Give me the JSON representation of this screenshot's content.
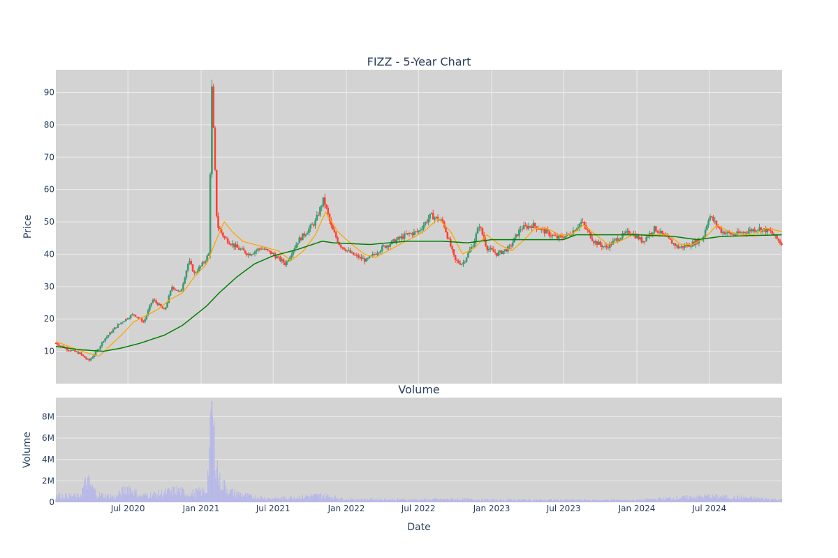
{
  "chart_data": [
    {
      "type": "candlestick",
      "title": "FIZZ - 5-Year Chart",
      "ylabel": "Price",
      "xlabel": "",
      "ylim": [
        0,
        97
      ],
      "xlim": [
        "2020-01-02",
        "2024-12-31"
      ],
      "yticks": [
        10,
        20,
        30,
        40,
        50,
        60,
        70,
        80,
        90
      ],
      "xticks": [
        "2020-07-01",
        "2021-01-01",
        "2021-07-01",
        "2022-01-01",
        "2022-07-01",
        "2023-01-01",
        "2023-07-01",
        "2024-01-01",
        "2024-07-01"
      ],
      "grid": true,
      "colors": {
        "plot_bg": "#d3d3d3",
        "grid": "#ececec",
        "up": "#3d9970",
        "down": "#ff4136",
        "ma_short": "#ffa500",
        "ma_long": "#008000"
      },
      "price_path": [
        [
          "2020-01-02",
          12.5
        ],
        [
          "2020-02-01",
          10.6
        ],
        [
          "2020-03-01",
          9.4
        ],
        [
          "2020-03-25",
          7.0
        ],
        [
          "2020-04-15",
          10.2
        ],
        [
          "2020-05-01",
          13.5
        ],
        [
          "2020-06-01",
          17.5
        ],
        [
          "2020-06-20",
          19.5
        ],
        [
          "2020-07-15",
          21.5
        ],
        [
          "2020-08-10",
          19.0
        ],
        [
          "2020-09-01",
          26.0
        ],
        [
          "2020-09-20",
          24.0
        ],
        [
          "2020-10-01",
          22.5
        ],
        [
          "2020-10-20",
          30.0
        ],
        [
          "2020-11-10",
          28.0
        ],
        [
          "2020-12-01",
          38.0
        ],
        [
          "2020-12-15",
          34.0
        ],
        [
          "2021-01-05",
          37.0
        ],
        [
          "2021-01-20",
          40.0
        ],
        [
          "2021-01-28",
          91.0
        ],
        [
          "2021-02-10",
          49.0
        ],
        [
          "2021-03-01",
          45.0
        ],
        [
          "2021-04-01",
          42.0
        ],
        [
          "2021-05-01",
          40.0
        ],
        [
          "2021-06-01",
          42.0
        ],
        [
          "2021-07-01",
          40.0
        ],
        [
          "2021-08-01",
          37.0
        ],
        [
          "2021-09-01",
          44.0
        ],
        [
          "2021-10-15",
          50.0
        ],
        [
          "2021-11-05",
          57.0
        ],
        [
          "2021-11-25",
          48.0
        ],
        [
          "2021-12-15",
          43.0
        ],
        [
          "2022-01-15",
          40.0
        ],
        [
          "2022-02-20",
          38.0
        ],
        [
          "2022-04-01",
          42.0
        ],
        [
          "2022-05-01",
          44.0
        ],
        [
          "2022-06-01",
          46.0
        ],
        [
          "2022-07-01",
          47.0
        ],
        [
          "2022-08-01",
          52.0
        ],
        [
          "2022-09-01",
          50.0
        ],
        [
          "2022-10-01",
          38.0
        ],
        [
          "2022-10-20",
          37.0
        ],
        [
          "2022-11-15",
          43.0
        ],
        [
          "2022-12-01",
          49.0
        ],
        [
          "2022-12-20",
          42.0
        ],
        [
          "2023-01-15",
          40.0
        ],
        [
          "2023-02-15",
          42.0
        ],
        [
          "2023-03-15",
          48.0
        ],
        [
          "2023-04-15",
          49.0
        ],
        [
          "2023-05-15",
          47.0
        ],
        [
          "2023-06-15",
          45.0
        ],
        [
          "2023-07-15",
          46.0
        ],
        [
          "2023-08-15",
          50.0
        ],
        [
          "2023-09-15",
          44.0
        ],
        [
          "2023-10-15",
          42.0
        ],
        [
          "2023-11-15",
          45.0
        ],
        [
          "2023-12-15",
          47.0
        ],
        [
          "2024-01-15",
          44.0
        ],
        [
          "2024-02-15",
          48.0
        ],
        [
          "2024-03-15",
          45.0
        ],
        [
          "2024-04-15",
          42.0
        ],
        [
          "2024-05-15",
          43.0
        ],
        [
          "2024-06-15",
          45.0
        ],
        [
          "2024-07-01",
          52.0
        ],
        [
          "2024-08-01",
          47.0
        ],
        [
          "2024-09-01",
          46.0
        ],
        [
          "2024-10-01",
          47.0
        ],
        [
          "2024-11-01",
          48.0
        ],
        [
          "2024-12-01",
          47.0
        ],
        [
          "2024-12-31",
          43.0
        ]
      ],
      "series": [
        {
          "values": [
            [
              "2020-01-02",
              13.0
            ],
            [
              "2020-02-15",
              11.0
            ],
            [
              "2020-03-20",
              9.5
            ],
            [
              "2020-04-20",
              8.5
            ],
            [
              "2020-05-15",
              11.5
            ],
            [
              "2020-06-15",
              15.0
            ],
            [
              "2020-07-15",
              19.0
            ],
            [
              "2020-08-15",
              21.0
            ],
            [
              "2020-09-15",
              23.0
            ],
            [
              "2020-10-15",
              26.0
            ],
            [
              "2020-11-15",
              28.0
            ],
            [
              "2020-12-15",
              33.0
            ],
            [
              "2021-01-15",
              37.0
            ],
            [
              "2021-02-10",
              45.0
            ],
            [
              "2021-02-28",
              50.0
            ],
            [
              "2021-03-20",
              47.0
            ],
            [
              "2021-04-15",
              44.0
            ],
            [
              "2021-05-15",
              43.0
            ],
            [
              "2021-06-15",
              42.0
            ],
            [
              "2021-07-15",
              41.0
            ],
            [
              "2021-08-15",
              38.0
            ],
            [
              "2021-09-15",
              41.0
            ],
            [
              "2021-10-15",
              46.0
            ],
            [
              "2021-11-10",
              53.0
            ],
            [
              "2021-12-10",
              47.0
            ],
            [
              "2022-01-15",
              43.0
            ],
            [
              "2022-02-15",
              40.0
            ],
            [
              "2022-03-15",
              39.0
            ],
            [
              "2022-04-15",
              41.0
            ],
            [
              "2022-05-15",
              43.0
            ],
            [
              "2022-06-15",
              45.0
            ],
            [
              "2022-07-15",
              47.0
            ],
            [
              "2022-08-20",
              51.0
            ],
            [
              "2022-09-20",
              47.0
            ],
            [
              "2022-10-20",
              40.0
            ],
            [
              "2022-11-20",
              42.0
            ],
            [
              "2022-12-20",
              46.0
            ],
            [
              "2023-01-20",
              43.0
            ],
            [
              "2023-02-20",
              41.0
            ],
            [
              "2023-03-20",
              44.0
            ],
            [
              "2023-04-20",
              48.0
            ],
            [
              "2023-05-20",
              48.0
            ],
            [
              "2023-06-20",
              46.0
            ],
            [
              "2023-07-20",
              46.0
            ],
            [
              "2023-08-20",
              49.0
            ],
            [
              "2023-09-20",
              46.0
            ],
            [
              "2023-10-20",
              43.0
            ],
            [
              "2023-11-20",
              44.0
            ],
            [
              "2023-12-20",
              46.0
            ],
            [
              "2024-01-20",
              46.0
            ],
            [
              "2024-02-20",
              46.0
            ],
            [
              "2024-03-20",
              46.0
            ],
            [
              "2024-04-20",
              43.0
            ],
            [
              "2024-05-20",
              43.0
            ],
            [
              "2024-06-20",
              45.0
            ],
            [
              "2024-07-20",
              49.0
            ],
            [
              "2024-08-20",
              47.0
            ],
            [
              "2024-09-20",
              46.0
            ],
            [
              "2024-10-20",
              46.0
            ],
            [
              "2024-11-20",
              48.0
            ],
            [
              "2024-12-31",
              47.0
            ]
          ]
        },
        {
          "values": [
            [
              "2020-01-02",
              11.5
            ],
            [
              "2020-03-01",
              10.5
            ],
            [
              "2020-05-01",
              10.0
            ],
            [
              "2020-06-15",
              11.0
            ],
            [
              "2020-08-01",
              12.5
            ],
            [
              "2020-10-01",
              15.0
            ],
            [
              "2020-11-15",
              18.0
            ],
            [
              "2021-01-15",
              24.0
            ],
            [
              "2021-02-15",
              28.0
            ],
            [
              "2021-04-01",
              33.0
            ],
            [
              "2021-05-15",
              37.0
            ],
            [
              "2021-07-01",
              39.5
            ],
            [
              "2021-09-01",
              41.5
            ],
            [
              "2021-11-01",
              44.0
            ],
            [
              "2021-12-01",
              43.5
            ],
            [
              "2022-03-01",
              43.0
            ],
            [
              "2022-06-01",
              44.0
            ],
            [
              "2022-09-01",
              44.0
            ],
            [
              "2022-11-01",
              43.5
            ],
            [
              "2023-01-01",
              44.5
            ],
            [
              "2023-04-01",
              44.5
            ],
            [
              "2023-07-01",
              44.5
            ],
            [
              "2023-08-01",
              46.0
            ],
            [
              "2023-10-01",
              46.0
            ],
            [
              "2024-01-01",
              46.0
            ],
            [
              "2024-04-01",
              45.5
            ],
            [
              "2024-06-01",
              44.5
            ],
            [
              "2024-08-01",
              45.5
            ],
            [
              "2024-12-31",
              46.0
            ]
          ]
        }
      ]
    },
    {
      "type": "bar",
      "title": "Volume",
      "ylabel": "Volume",
      "xlabel": "Date",
      "ylim": [
        0,
        9800000
      ],
      "yticks": [
        0,
        2000000,
        4000000,
        6000000,
        8000000
      ],
      "ytick_labels": [
        "0",
        "2M",
        "4M",
        "6M",
        "8M"
      ],
      "xticks": [
        "2020-07-01",
        "2021-01-01",
        "2021-07-01",
        "2022-01-01",
        "2022-07-01",
        "2023-01-01",
        "2023-07-01",
        "2024-01-01",
        "2024-07-01"
      ],
      "xtick_labels": [
        "Jul 2020",
        "Jan 2021",
        "Jul 2021",
        "Jan 2022",
        "Jul 2022",
        "Jan 2023",
        "Jul 2023",
        "Jan 2024",
        "Jul 2024"
      ],
      "grid": true,
      "colors": {
        "bar": "#b8b8e8"
      },
      "volume_profile": [
        [
          "2020-01-02",
          800000
        ],
        [
          "2020-03-01",
          700000
        ],
        [
          "2020-03-20",
          2500000
        ],
        [
          "2020-04-15",
          900000
        ],
        [
          "2020-06-01",
          600000
        ],
        [
          "2020-07-01",
          1800000
        ],
        [
          "2020-08-01",
          700000
        ],
        [
          "2020-10-01",
          1100000
        ],
        [
          "2020-11-01",
          1400000
        ],
        [
          "2020-12-01",
          1000000
        ],
        [
          "2021-01-15",
          1300000
        ],
        [
          "2021-01-28",
          9500000
        ],
        [
          "2021-02-15",
          2500000
        ],
        [
          "2021-03-15",
          1200000
        ],
        [
          "2021-05-01",
          700000
        ],
        [
          "2021-07-01",
          400000
        ],
        [
          "2021-09-01",
          600000
        ],
        [
          "2021-11-01",
          800000
        ],
        [
          "2022-01-01",
          350000
        ],
        [
          "2022-07-01",
          300000
        ],
        [
          "2022-10-01",
          350000
        ],
        [
          "2023-01-01",
          280000
        ],
        [
          "2023-07-01",
          250000
        ],
        [
          "2024-01-01",
          250000
        ],
        [
          "2024-07-01",
          700000
        ],
        [
          "2024-12-31",
          300000
        ]
      ]
    }
  ]
}
